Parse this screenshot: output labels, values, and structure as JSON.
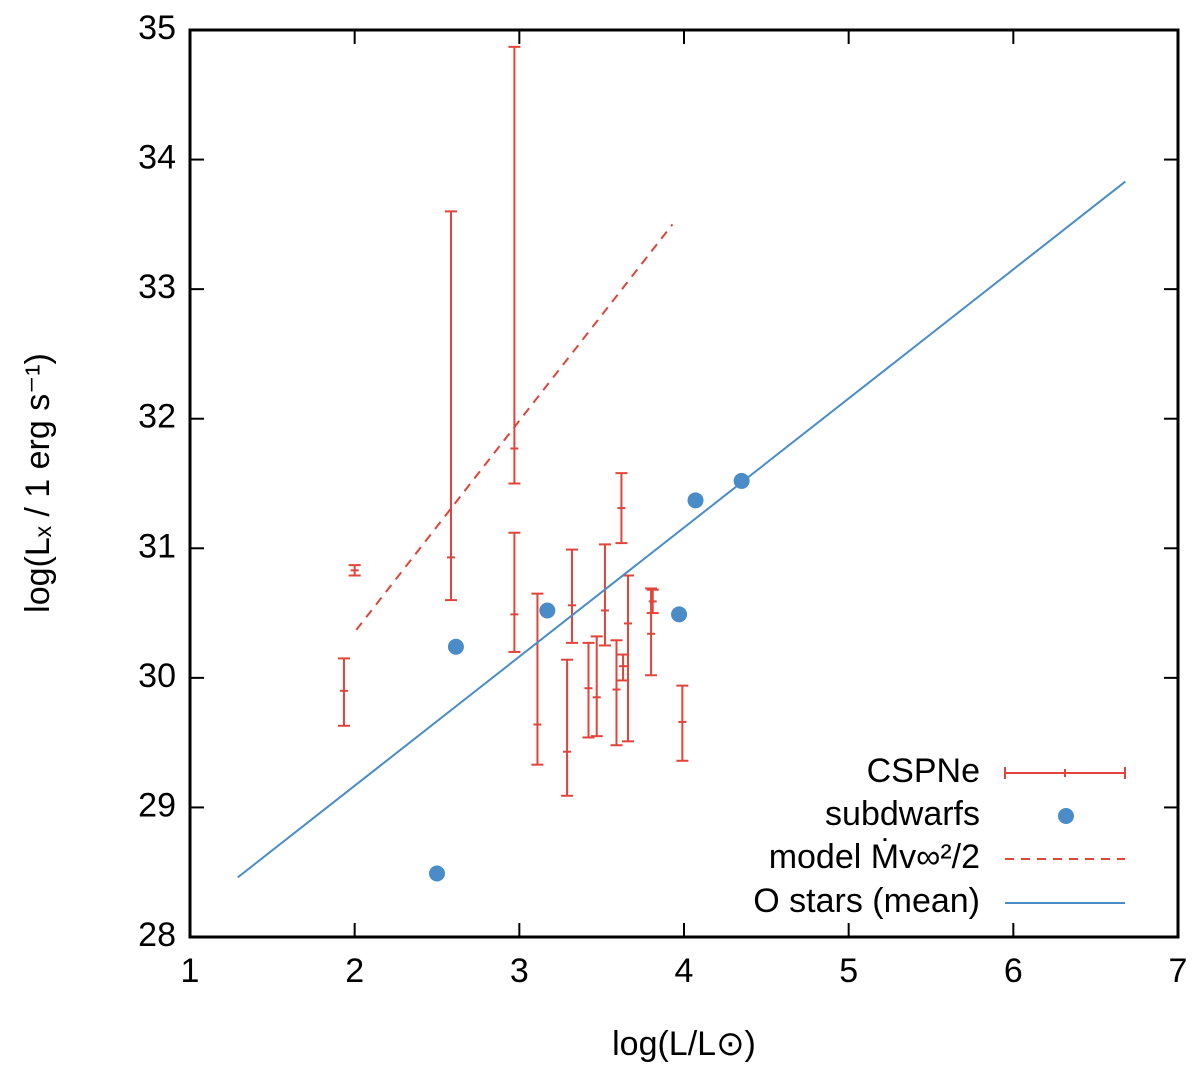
{
  "chart_data": {
    "type": "scatter",
    "x_label": "log(L/L⊙)",
    "y_label": "log(Lₓ / 1 erg s⁻¹)",
    "xlim": [
      1,
      7
    ],
    "ylim": [
      28,
      35
    ],
    "xticks": [
      1,
      2,
      3,
      4,
      5,
      6,
      7
    ],
    "yticks": [
      28,
      29,
      30,
      31,
      32,
      33,
      34,
      35
    ],
    "legend": "bottom-right",
    "series": [
      {
        "name": "CSPNe",
        "color": "#e0443a",
        "kind": "errorbar",
        "x": [
          1.935,
          2.0,
          2.585,
          2.97,
          2.97,
          3.11,
          3.29,
          3.32,
          3.42,
          3.47,
          3.52,
          3.59,
          3.62,
          3.63,
          3.66,
          3.8,
          3.81,
          3.99
        ],
        "values": [
          29.9,
          30.83,
          30.93,
          31.77,
          30.49,
          29.64,
          29.43,
          30.56,
          29.92,
          29.85,
          30.52,
          29.91,
          31.31,
          30.09,
          30.42,
          30.34,
          30.59,
          29.66
        ],
        "ylow": [
          29.63,
          30.79,
          30.6,
          31.5,
          30.2,
          29.33,
          29.09,
          30.27,
          29.54,
          29.55,
          30.25,
          29.48,
          31.04,
          29.98,
          29.51,
          30.02,
          30.5,
          29.36
        ],
        "yhigh": [
          30.15,
          30.87,
          33.6,
          34.87,
          31.12,
          30.65,
          30.14,
          30.99,
          30.27,
          30.32,
          31.03,
          30.29,
          31.58,
          30.18,
          30.79,
          30.69,
          30.68,
          29.94
        ]
      },
      {
        "name": "subdwarfs",
        "color": "#4a8cc7",
        "kind": "points",
        "x": [
          2.615,
          3.17,
          2.5,
          3.97,
          4.07,
          4.35
        ],
        "values": [
          30.24,
          30.52,
          28.49,
          30.49,
          31.37,
          31.52
        ]
      },
      {
        "name": "model Ṁv∞²/2",
        "color": "#e0443a",
        "kind": "dashed-line",
        "x": [
          2.01,
          3.93
        ],
        "values": [
          30.37,
          33.5
        ]
      },
      {
        "name": "O stars (mean)",
        "color": "#4a8cc7",
        "kind": "line",
        "x": [
          1.29,
          6.68
        ],
        "values": [
          28.46,
          33.83
        ]
      }
    ]
  }
}
